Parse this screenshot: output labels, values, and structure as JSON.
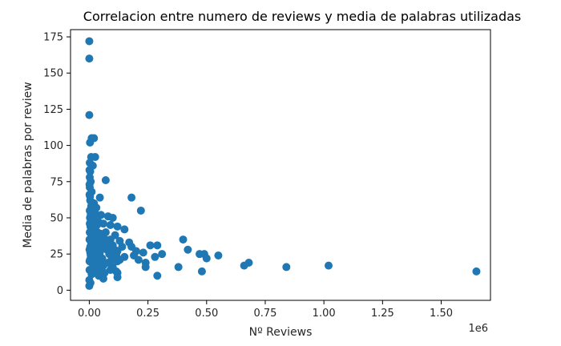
{
  "chart_data": {
    "type": "scatter",
    "title": "Correlacion entre numero de reviews y media de palabras utilizadas",
    "xlabel": "Nº Reviews",
    "ylabel": "Media de palabras por review",
    "x_offset_label": "1e6",
    "xlim": [
      -0.08,
      1.71
    ],
    "ylim": [
      -7,
      180
    ],
    "x_ticks": [
      0,
      0.25,
      0.5,
      0.75,
      1.0,
      1.25,
      1.5
    ],
    "x_tick_labels": [
      "0.00",
      "0.25",
      "0.50",
      "0.75",
      "1.00",
      "1.25",
      "1.50"
    ],
    "y_ticks": [
      0,
      25,
      50,
      75,
      100,
      125,
      150,
      175
    ],
    "y_tick_labels": [
      "0",
      "25",
      "50",
      "75",
      "100",
      "125",
      "150",
      "175"
    ],
    "grid": false,
    "marker_color": "#1f77b4",
    "points": [
      [
        0.0,
        172
      ],
      [
        0.0,
        160
      ],
      [
        0.0,
        121
      ],
      [
        0.01,
        105
      ],
      [
        0.02,
        105
      ],
      [
        0.003,
        102
      ],
      [
        0.008,
        92
      ],
      [
        0.025,
        92
      ],
      [
        0.002,
        88
      ],
      [
        0.015,
        86
      ],
      [
        0.004,
        82
      ],
      [
        0.002,
        78
      ],
      [
        0.006,
        75
      ],
      [
        0.07,
        76
      ],
      [
        0.002,
        71
      ],
      [
        0.01,
        68
      ],
      [
        0.003,
        65
      ],
      [
        0.045,
        64
      ],
      [
        0.18,
        64
      ],
      [
        0.004,
        62
      ],
      [
        0.02,
        60
      ],
      [
        0.008,
        58
      ],
      [
        0.03,
        57
      ],
      [
        0.22,
        55
      ],
      [
        0.002,
        55
      ],
      [
        0.012,
        53
      ],
      [
        0.05,
        52
      ],
      [
        0.08,
        51
      ],
      [
        0.1,
        50
      ],
      [
        0.003,
        50
      ],
      [
        0.015,
        48
      ],
      [
        0.04,
        47
      ],
      [
        0.06,
        46
      ],
      [
        0.09,
        45
      ],
      [
        0.12,
        44
      ],
      [
        0.15,
        42
      ],
      [
        0.005,
        44
      ],
      [
        0.025,
        42
      ],
      [
        0.035,
        40
      ],
      [
        0.07,
        40
      ],
      [
        0.11,
        38
      ],
      [
        0.002,
        40
      ],
      [
        0.01,
        38
      ],
      [
        0.05,
        36
      ],
      [
        0.09,
        35
      ],
      [
        0.13,
        34
      ],
      [
        0.17,
        33
      ],
      [
        0.4,
        35
      ],
      [
        0.02,
        35
      ],
      [
        0.008,
        33
      ],
      [
        0.06,
        32
      ],
      [
        0.1,
        31
      ],
      [
        0.14,
        30
      ],
      [
        0.18,
        30
      ],
      [
        0.26,
        31
      ],
      [
        0.29,
        31
      ],
      [
        0.42,
        28
      ],
      [
        0.004,
        30
      ],
      [
        0.03,
        29
      ],
      [
        0.075,
        28
      ],
      [
        0.12,
        27
      ],
      [
        0.2,
        27
      ],
      [
        0.23,
        26
      ],
      [
        0.31,
        25
      ],
      [
        0.47,
        25
      ],
      [
        0.49,
        25
      ],
      [
        0.55,
        24
      ],
      [
        0.015,
        27
      ],
      [
        0.045,
        26
      ],
      [
        0.085,
        25
      ],
      [
        0.115,
        24
      ],
      [
        0.15,
        23
      ],
      [
        0.19,
        24
      ],
      [
        0.28,
        23
      ],
      [
        0.5,
        22
      ],
      [
        0.006,
        24
      ],
      [
        0.025,
        23
      ],
      [
        0.055,
        22
      ],
      [
        0.095,
        21
      ],
      [
        0.13,
        21
      ],
      [
        0.21,
        21
      ],
      [
        0.003,
        21
      ],
      [
        0.04,
        20
      ],
      [
        0.08,
        19
      ],
      [
        0.12,
        20
      ],
      [
        0.24,
        19
      ],
      [
        0.68,
        19
      ],
      [
        0.66,
        17
      ],
      [
        0.01,
        19
      ],
      [
        0.03,
        18
      ],
      [
        0.06,
        17
      ],
      [
        0.1,
        16
      ],
      [
        0.24,
        16
      ],
      [
        0.38,
        16
      ],
      [
        0.84,
        16
      ],
      [
        1.02,
        17
      ],
      [
        0.02,
        16
      ],
      [
        0.05,
        15
      ],
      [
        0.09,
        14
      ],
      [
        0.115,
        13
      ],
      [
        0.48,
        13
      ],
      [
        1.65,
        13
      ],
      [
        0.015,
        14
      ],
      [
        0.035,
        12
      ],
      [
        0.065,
        12
      ],
      [
        0.12,
        12
      ],
      [
        0.01,
        11
      ],
      [
        0.04,
        10
      ],
      [
        0.29,
        10
      ],
      [
        0.12,
        9
      ],
      [
        0.06,
        8
      ],
      [
        0.0,
        7
      ],
      [
        0.005,
        5
      ],
      [
        0.0,
        3
      ],
      [
        0.004,
        26
      ],
      [
        0.007,
        36
      ],
      [
        0.012,
        43
      ],
      [
        0.018,
        31
      ],
      [
        0.028,
        37
      ],
      [
        0.033,
        45
      ],
      [
        0.038,
        33
      ],
      [
        0.043,
        28
      ],
      [
        0.048,
        39
      ],
      [
        0.058,
        30
      ],
      [
        0.068,
        35
      ],
      [
        0.078,
        33
      ],
      [
        0.088,
        29
      ],
      [
        0.098,
        26
      ],
      [
        0.108,
        28
      ],
      [
        0.002,
        46
      ],
      [
        0.006,
        52
      ],
      [
        0.009,
        61
      ],
      [
        0.013,
        57
      ],
      [
        0.017,
        49
      ],
      [
        0.023,
        54
      ],
      [
        0.027,
        50
      ],
      [
        0.001,
        35
      ],
      [
        0.001,
        28
      ],
      [
        0.001,
        20
      ],
      [
        0.001,
        14
      ],
      [
        0.001,
        66
      ],
      [
        0.001,
        73
      ],
      [
        0.001,
        83
      ]
    ]
  }
}
